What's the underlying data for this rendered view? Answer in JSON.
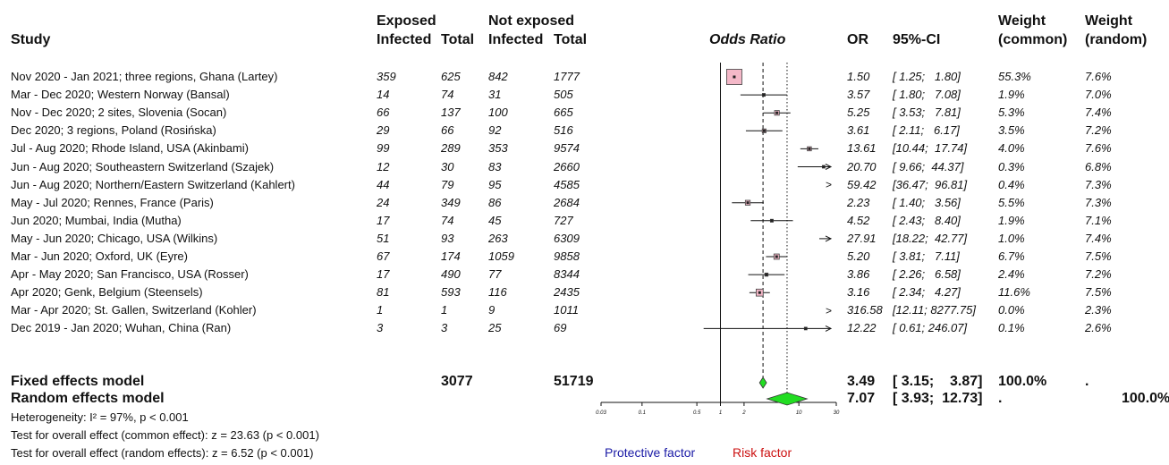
{
  "headers": {
    "study": "Study",
    "exposed": "Exposed",
    "not_exposed": "Not exposed",
    "infected": "Infected",
    "total": "Total",
    "odds_ratio": "Odds Ratio",
    "or": "OR",
    "ci": "95%-CI",
    "weight": "Weight",
    "common": "(common)",
    "random": "(random)"
  },
  "rows": [
    {
      "study": "Nov 2020 - Jan 2021; three regions, Ghana (Lartey)",
      "e_inf": "359",
      "e_tot": "625",
      "n_inf": "842",
      "n_tot": "1777",
      "or_text": "1.50",
      "ci_text": "[ 1.25;   1.80]",
      "w_common": "55.3%",
      "w_random": "7.6%"
    },
    {
      "study": "Mar - Dec 2020; Western Norway (Bansal)",
      "e_inf": "14",
      "e_tot": "74",
      "n_inf": "31",
      "n_tot": "505",
      "or_text": "3.57",
      "ci_text": "[ 1.80;   7.08]",
      "w_common": "1.9%",
      "w_random": "7.0%"
    },
    {
      "study": "Nov - Dec 2020; 2 sites, Slovenia (Socan)",
      "e_inf": "66",
      "e_tot": "137",
      "n_inf": "100",
      "n_tot": "665",
      "or_text": "5.25",
      "ci_text": "[ 3.53;   7.81]",
      "w_common": "5.3%",
      "w_random": "7.4%"
    },
    {
      "study": "Dec 2020; 3 regions, Poland (Rosińska)",
      "e_inf": "29",
      "e_tot": "66",
      "n_inf": "92",
      "n_tot": "516",
      "or_text": "3.61",
      "ci_text": "[ 2.11;   6.17]",
      "w_common": "3.5%",
      "w_random": "7.2%"
    },
    {
      "study": "Jul - Aug 2020; Rhode Island, USA (Akinbami)",
      "e_inf": "99",
      "e_tot": "289",
      "n_inf": "353",
      "n_tot": "9574",
      "or_text": "13.61",
      "ci_text": "[10.44;  17.74]",
      "w_common": "4.0%",
      "w_random": "7.6%"
    },
    {
      "study": "Jun - Aug 2020; Southeastern Switzerland (Szajek)",
      "e_inf": "12",
      "e_tot": "30",
      "n_inf": "83",
      "n_tot": "2660",
      "or_text": "20.70",
      "ci_text": "[ 9.66;  44.37]",
      "w_common": "0.3%",
      "w_random": "6.8%"
    },
    {
      "study": "Jun - Aug 2020; Northern/Eastern Switzerland (Kahlert)",
      "e_inf": "44",
      "e_tot": "79",
      "n_inf": "95",
      "n_tot": "4585",
      "or_text": "59.42",
      "ci_text": "[36.47;  96.81]",
      "w_common": "0.4%",
      "w_random": "7.3%"
    },
    {
      "study": "May - Jul 2020; Rennes, France (Paris)",
      "e_inf": "24",
      "e_tot": "349",
      "n_inf": "86",
      "n_tot": "2684",
      "or_text": "2.23",
      "ci_text": "[ 1.40;   3.56]",
      "w_common": "5.5%",
      "w_random": "7.3%"
    },
    {
      "study": "Jun 2020; Mumbai, India (Mutha)",
      "e_inf": "17",
      "e_tot": "74",
      "n_inf": "45",
      "n_tot": "727",
      "or_text": "4.52",
      "ci_text": "[ 2.43;   8.40]",
      "w_common": "1.9%",
      "w_random": "7.1%"
    },
    {
      "study": "May - Jun 2020; Chicago, USA (Wilkins)",
      "e_inf": "51",
      "e_tot": "93",
      "n_inf": "263",
      "n_tot": "6309",
      "or_text": "27.91",
      "ci_text": "[18.22;  42.77]",
      "w_common": "1.0%",
      "w_random": "7.4%"
    },
    {
      "study": "Mar - Jun 2020; Oxford, UK (Eyre)",
      "e_inf": "67",
      "e_tot": "174",
      "n_inf": "1059",
      "n_tot": "9858",
      "or_text": "5.20",
      "ci_text": "[ 3.81;   7.11]",
      "w_common": "6.7%",
      "w_random": "7.5%"
    },
    {
      "study": "Apr - May 2020; San Francisco, USA (Rosser)",
      "e_inf": "17",
      "e_tot": "490",
      "n_inf": "77",
      "n_tot": "8344",
      "or_text": "3.86",
      "ci_text": "[ 2.26;   6.58]",
      "w_common": "2.4%",
      "w_random": "7.2%"
    },
    {
      "study": "Apr 2020; Genk, Belgium (Steensels)",
      "e_inf": "81",
      "e_tot": "593",
      "n_inf": "116",
      "n_tot": "2435",
      "or_text": "3.16",
      "ci_text": "[ 2.34;   4.27]",
      "w_common": "11.6%",
      "w_random": "7.5%"
    },
    {
      "study": "Mar - Apr 2020; St. Gallen, Switzerland (Kohler)",
      "e_inf": "1",
      "e_tot": "1",
      "n_inf": "9",
      "n_tot": "1011",
      "or_text": "316.58",
      "ci_text": "[12.11; 8277.75]",
      "w_common": "0.0%",
      "w_random": "2.3%"
    },
    {
      "study": "Dec 2019 - Jan 2020; Wuhan, China (Ran)",
      "e_inf": "3",
      "e_tot": "3",
      "n_inf": "25",
      "n_tot": "69",
      "or_text": "12.22",
      "ci_text": "[ 0.61; 246.07]",
      "w_common": "0.1%",
      "w_random": "2.6%"
    }
  ],
  "summary": {
    "fixed": {
      "label": "Fixed effects model",
      "e_tot": "3077",
      "n_tot": "51719",
      "or_text": "3.49",
      "ci_text": "[ 3.15;    3.87]",
      "w_common": "100.0%",
      "w_random": "."
    },
    "random": {
      "label": "Random effects model",
      "or_text": "7.07",
      "ci_text": "[ 3.93;  12.73]",
      "w_common": ".",
      "w_random": "100.0%"
    }
  },
  "footnotes": {
    "heterogeneity": "Heterogeneity: I² = 97%, p < 0.001",
    "test_common": "Test for overall effect (common effect): z = 23.63 (p < 0.001)",
    "test_random": "Test for overall effect (random effects): z = 6.52 (p < 0.001)"
  },
  "legend": {
    "protective": "Protective factor",
    "risk": "Risk factor",
    "protective_color": "#1a1aa6",
    "risk_color": "#cc1111"
  },
  "colors": {
    "box_fill": "#f4b8c8",
    "diamond_fill": "#22dd22",
    "line": "#111111"
  },
  "chart_data": {
    "type": "forest",
    "scale": "log",
    "xlim": [
      0.03,
      30
    ],
    "ticks": [
      0.03,
      0.1,
      0.5,
      1,
      2,
      10,
      30
    ],
    "tick_labels": [
      "0.03",
      "0.1",
      "0.5",
      "1",
      "2",
      "10",
      "30"
    ],
    "xlabel": "Odds Ratio",
    "reference_line": 1,
    "common_effect_line": 3.49,
    "random_effect_line": 7.07,
    "studies": [
      {
        "or": 1.5,
        "lo": 1.25,
        "hi": 1.8,
        "weight_common": 55.3
      },
      {
        "or": 3.57,
        "lo": 1.8,
        "hi": 7.08,
        "weight_common": 1.9
      },
      {
        "or": 5.25,
        "lo": 3.53,
        "hi": 7.81,
        "weight_common": 5.3
      },
      {
        "or": 3.61,
        "lo": 2.11,
        "hi": 6.17,
        "weight_common": 3.5
      },
      {
        "or": 13.61,
        "lo": 10.44,
        "hi": 17.74,
        "weight_common": 4.0
      },
      {
        "or": 20.7,
        "lo": 9.66,
        "hi": 44.37,
        "weight_common": 0.3
      },
      {
        "or": 59.42,
        "lo": 36.47,
        "hi": 96.81,
        "weight_common": 0.4
      },
      {
        "or": 2.23,
        "lo": 1.4,
        "hi": 3.56,
        "weight_common": 5.5
      },
      {
        "or": 4.52,
        "lo": 2.43,
        "hi": 8.4,
        "weight_common": 1.9
      },
      {
        "or": 27.91,
        "lo": 18.22,
        "hi": 42.77,
        "weight_common": 1.0
      },
      {
        "or": 5.2,
        "lo": 3.81,
        "hi": 7.11,
        "weight_common": 6.7
      },
      {
        "or": 3.86,
        "lo": 2.26,
        "hi": 6.58,
        "weight_common": 2.4
      },
      {
        "or": 3.16,
        "lo": 2.34,
        "hi": 4.27,
        "weight_common": 11.6
      },
      {
        "or": 316.58,
        "lo": 12.11,
        "hi": 8277.75,
        "weight_common": 0.0
      },
      {
        "or": 12.22,
        "lo": 0.61,
        "hi": 246.07,
        "weight_common": 0.1
      }
    ],
    "fixed": {
      "or": 3.49,
      "lo": 3.15,
      "hi": 3.87
    },
    "random": {
      "or": 7.07,
      "lo": 3.93,
      "hi": 12.73
    }
  }
}
